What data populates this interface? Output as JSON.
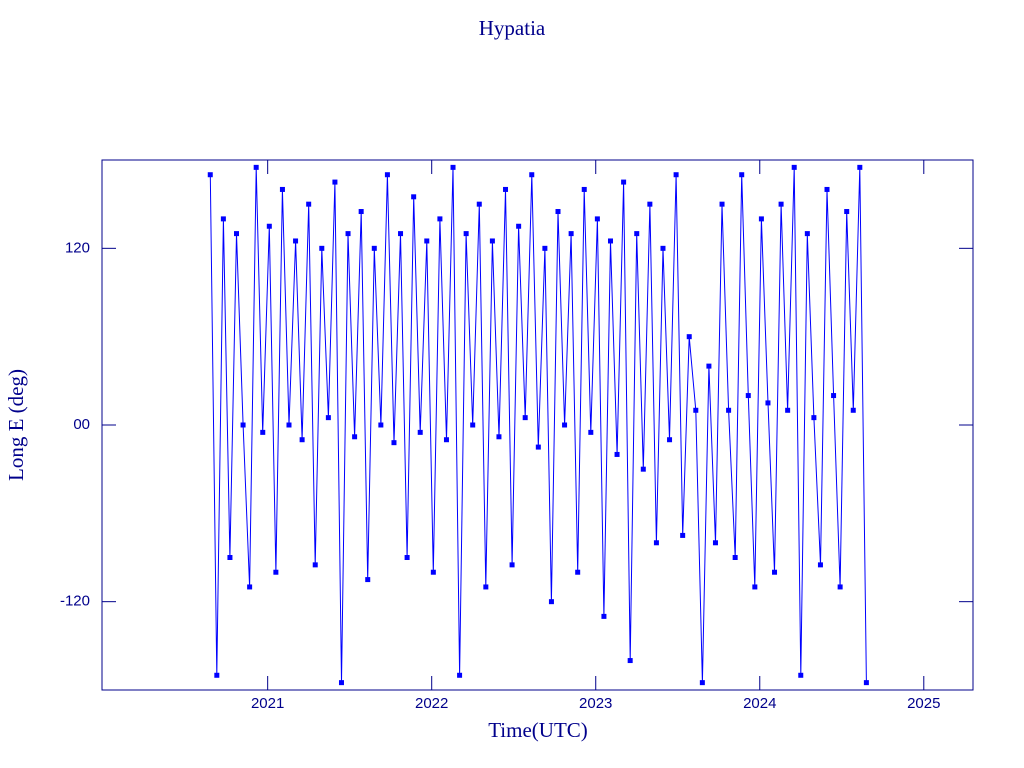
{
  "chart_data": {
    "type": "line",
    "title": "Hypatia",
    "xlabel": "Time(UTC)",
    "ylabel": "Long E (deg)",
    "xlim": [
      2019.99,
      2025.3
    ],
    "ylim": [
      -180,
      180
    ],
    "xticks": [
      2021,
      2022,
      2023,
      2024,
      2025
    ],
    "yticks": [
      -120,
      {
        "value": 0,
        "label": "00"
      },
      120
    ],
    "series": [
      {
        "color": "#0000ff",
        "x": [
          2020.65,
          2020.69,
          2020.73,
          2020.77,
          2020.81,
          2020.85,
          2020.89,
          2020.93,
          2020.97,
          2021.01,
          2021.05,
          2021.09,
          2021.13,
          2021.17,
          2021.21,
          2021.25,
          2021.29,
          2021.33,
          2021.37,
          2021.41,
          2021.45,
          2021.49,
          2021.53,
          2021.57,
          2021.61,
          2021.65,
          2021.69,
          2021.73,
          2021.77,
          2021.81,
          2021.85,
          2021.89,
          2021.93,
          2021.97,
          2022.01,
          2022.05,
          2022.09,
          2022.13,
          2022.17,
          2022.21,
          2022.25,
          2022.29,
          2022.33,
          2022.37,
          2022.41,
          2022.45,
          2022.49,
          2022.53,
          2022.57,
          2022.61,
          2022.65,
          2022.69,
          2022.73,
          2022.77,
          2022.81,
          2022.85,
          2022.89,
          2022.93,
          2022.97,
          2023.01,
          2023.05,
          2023.09,
          2023.13,
          2023.17,
          2023.21,
          2023.25,
          2023.29,
          2023.33,
          2023.37,
          2023.41,
          2023.45,
          2023.49,
          2023.53,
          2023.57,
          2023.61,
          2023.65,
          2023.69,
          2023.73,
          2023.77,
          2023.81,
          2023.85,
          2023.89,
          2023.93,
          2023.97,
          2024.01,
          2024.05,
          2024.09,
          2024.13,
          2024.17,
          2024.21,
          2024.25,
          2024.29,
          2024.33,
          2024.37,
          2024.41,
          2024.45,
          2024.49,
          2024.53,
          2024.57,
          2024.61,
          2024.65
        ],
        "values": [
          170,
          -170,
          140,
          -90,
          130,
          0,
          -110,
          175,
          -5,
          135,
          -100,
          160,
          0,
          125,
          -10,
          150,
          -95,
          120,
          5,
          165,
          -175,
          130,
          -8,
          145,
          -105,
          120,
          0,
          170,
          -12,
          130,
          -90,
          155,
          -5,
          125,
          -100,
          140,
          -10,
          175,
          -170,
          130,
          0,
          150,
          -110,
          125,
          -8,
          160,
          -95,
          135,
          5,
          170,
          -15,
          120,
          -120,
          145,
          0,
          130,
          -100,
          160,
          -5,
          140,
          -130,
          125,
          -20,
          165,
          -160,
          130,
          -30,
          150,
          -80,
          120,
          -10,
          170,
          -75,
          60,
          10,
          -175,
          40,
          -80,
          150,
          10,
          -90,
          170,
          20,
          -110,
          140,
          15,
          -100,
          150,
          10,
          175,
          -170,
          130,
          5,
          -95,
          160,
          20,
          -110,
          145,
          10,
          175,
          -175
        ]
      }
    ]
  }
}
